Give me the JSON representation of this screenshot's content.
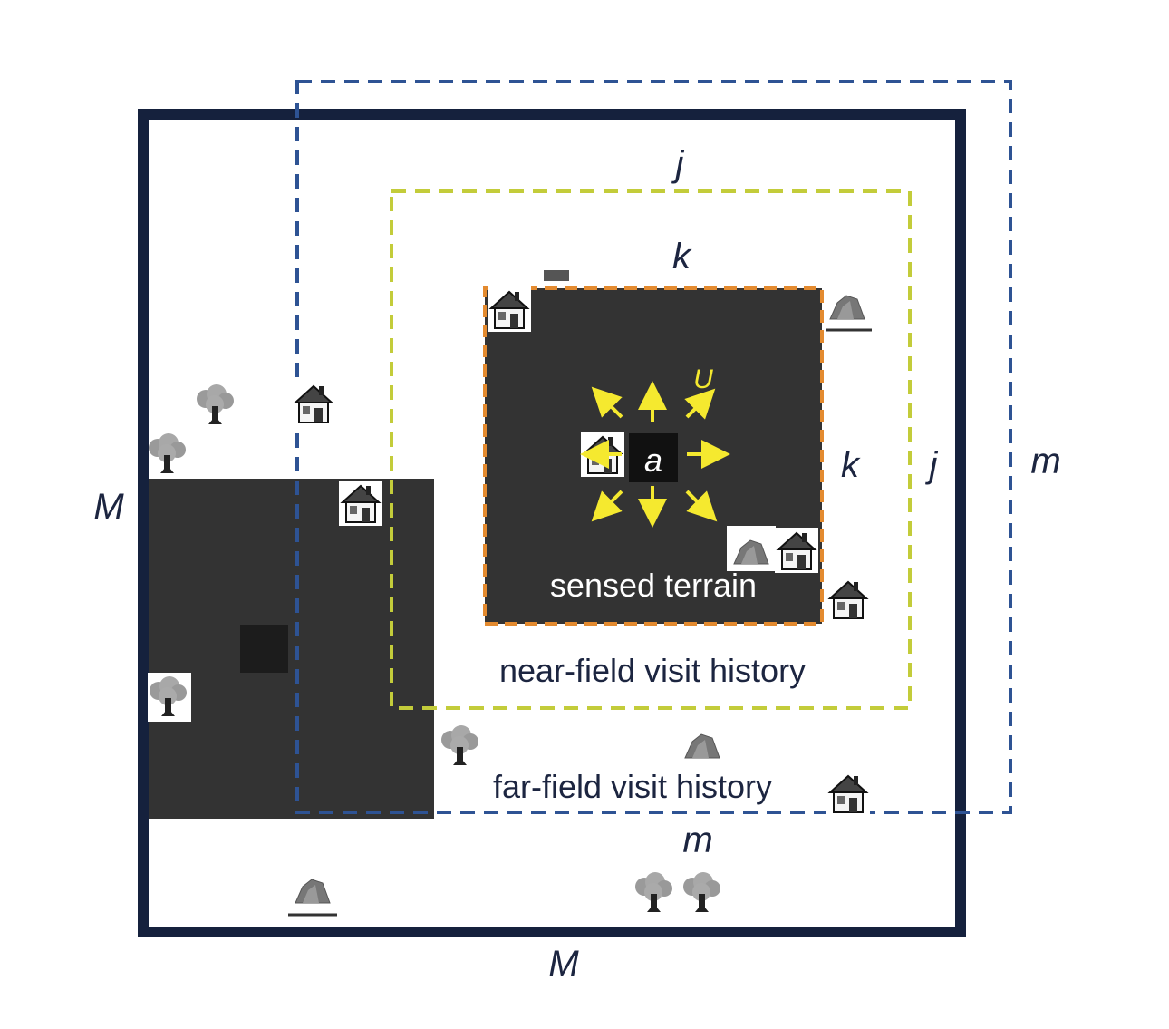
{
  "diagram": {
    "labels": {
      "M_left": "M",
      "M_bottom": "M",
      "m_right": "m",
      "m_bottom": "m",
      "j_top": "j",
      "j_right": "j",
      "k_top": "k",
      "k_right": "k",
      "agent": "a",
      "action": "U",
      "sensed": "sensed terrain",
      "near": "near-field visit history",
      "far": "far-field visit history"
    },
    "colors": {
      "outer_border": "#15213d",
      "far_field_border": "#2e5394",
      "near_field_border": "#c3cc3a",
      "sensed_border": "#e38a2f",
      "terrain_dark": "#333333",
      "arrow": "#f5e92f"
    },
    "icons": [
      "house-icon",
      "tree-icon",
      "rock-icon"
    ]
  }
}
